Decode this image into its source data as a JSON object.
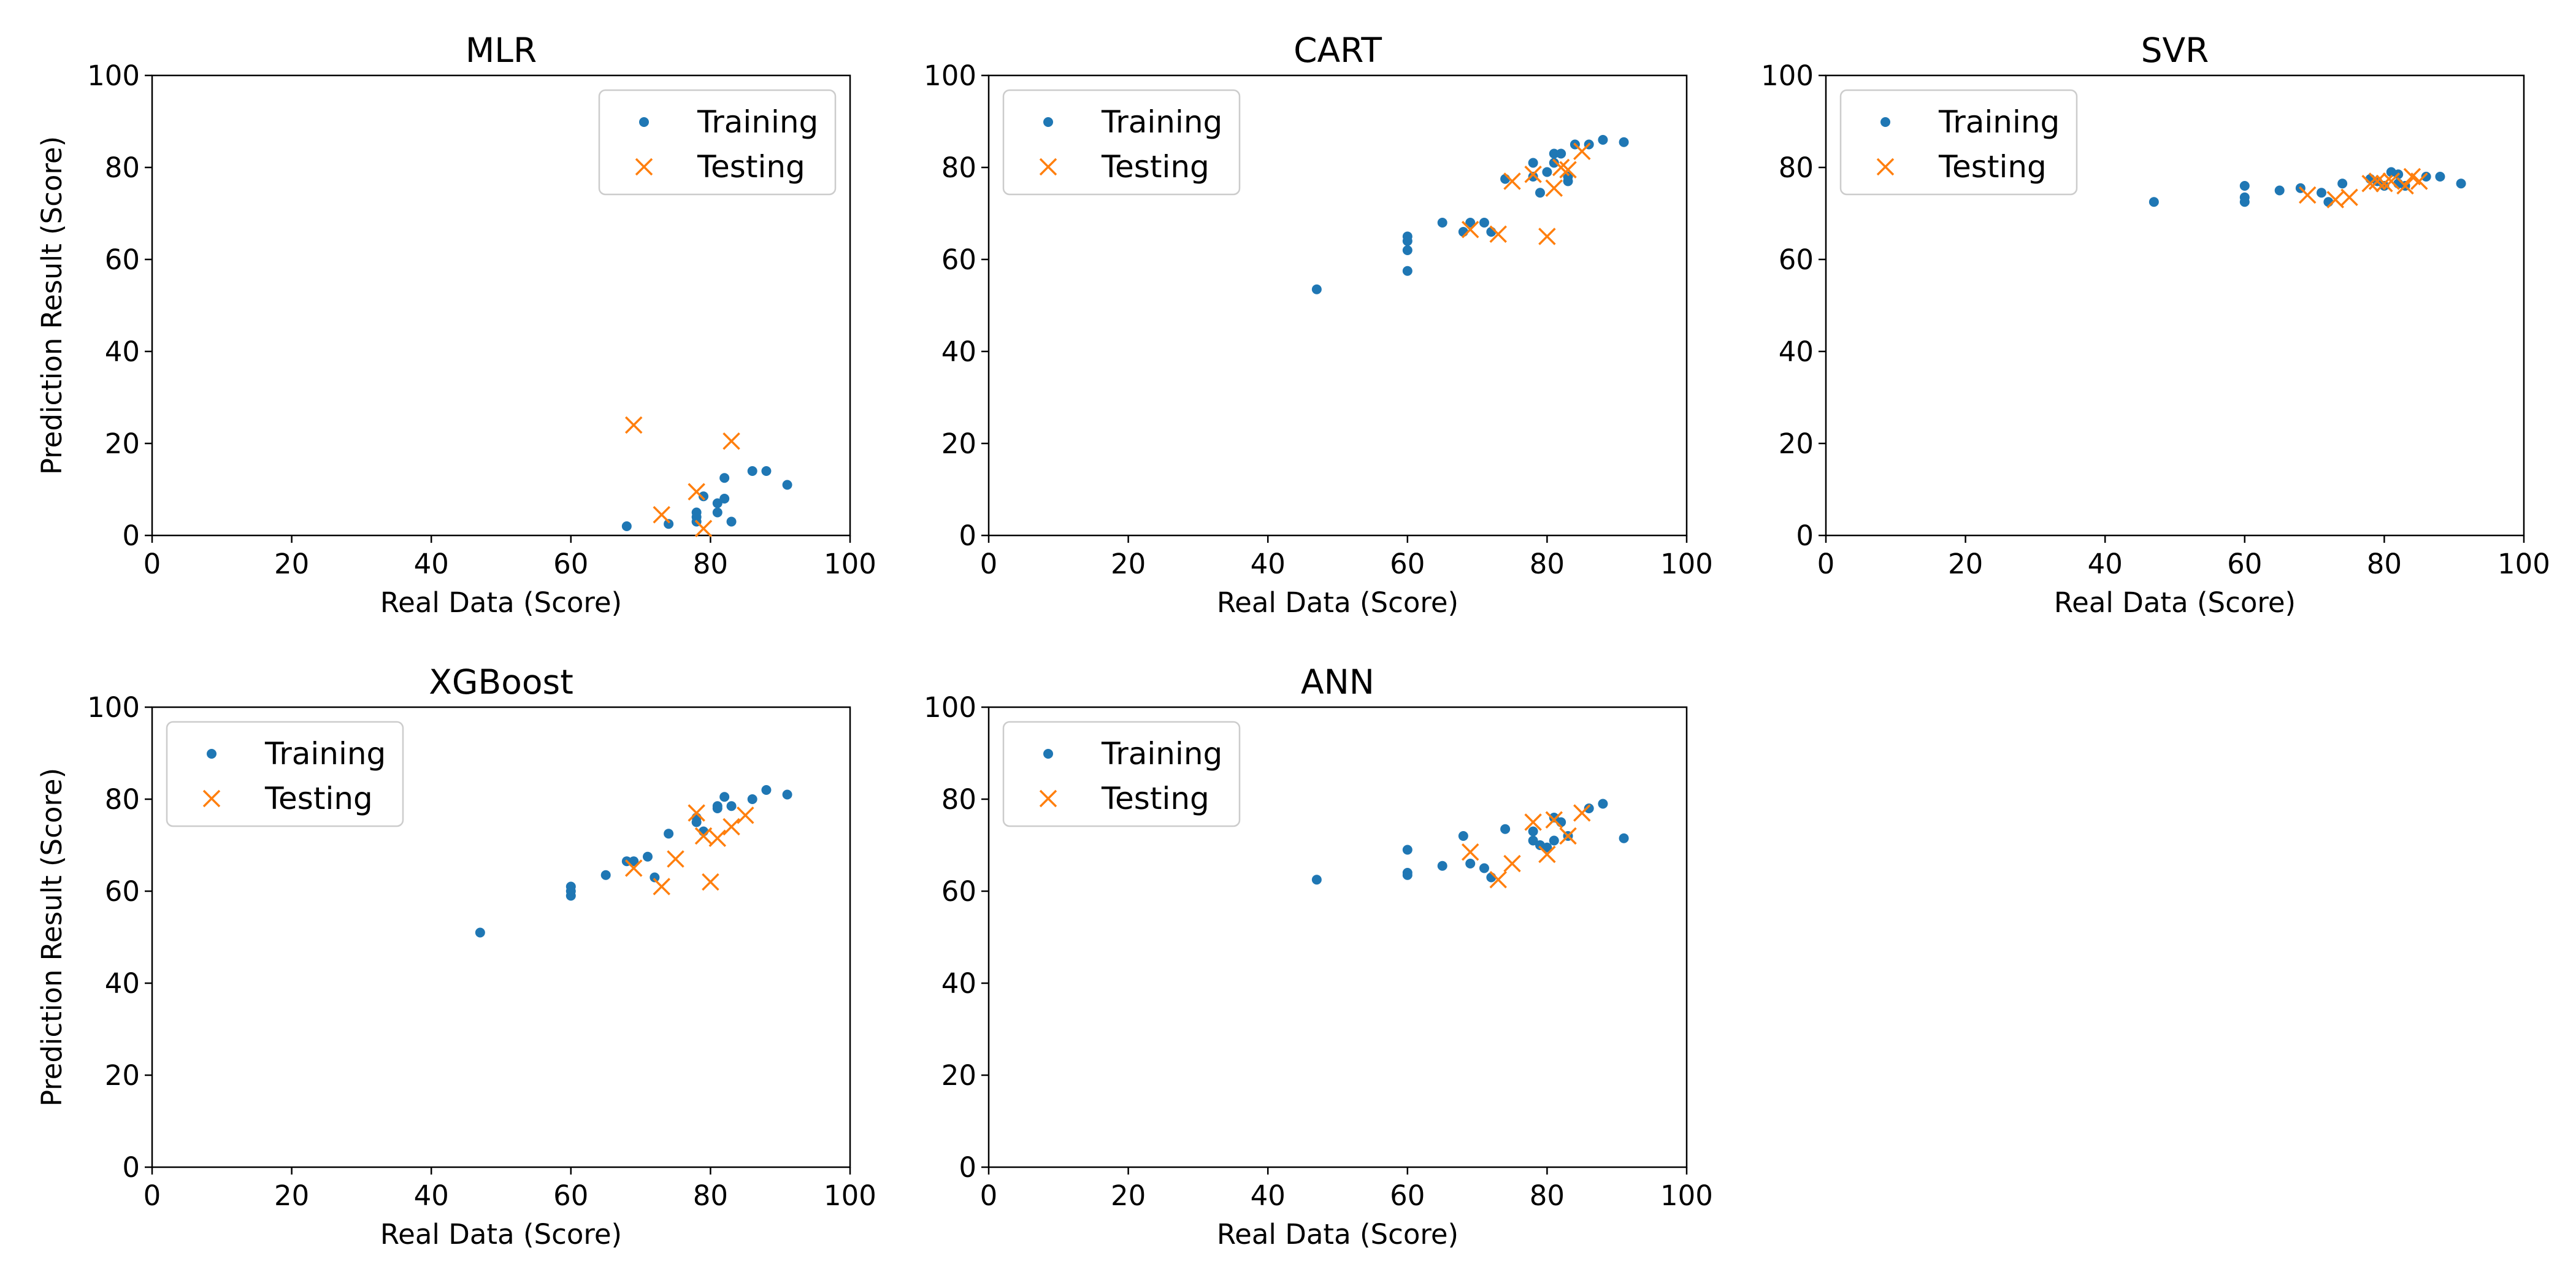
{
  "colors": {
    "training": "#1f77b4",
    "testing": "#ff7f0e"
  },
  "chart_data": [
    {
      "type": "scatter",
      "title": "MLR",
      "xlabel": "Real Data (Score)",
      "ylabel": "Prediction Result (Score)",
      "xlim": [
        0,
        100
      ],
      "ylim": [
        0,
        100
      ],
      "xticks": [
        "0",
        "20",
        "40",
        "60",
        "80",
        "100"
      ],
      "yticks": [
        "0",
        "20",
        "40",
        "60",
        "80",
        "100"
      ],
      "grid": false,
      "legend_position": "upper right",
      "series": [
        {
          "name": "Training",
          "marker": "dot",
          "points": [
            [
              68,
              2
            ],
            [
              74,
              2.5
            ],
            [
              78,
              3
            ],
            [
              78,
              4
            ],
            [
              78,
              5
            ],
            [
              79,
              8.5
            ],
            [
              81,
              5
            ],
            [
              81,
              7
            ],
            [
              82,
              8
            ],
            [
              82,
              12.5
            ],
            [
              83,
              3
            ],
            [
              86,
              14
            ],
            [
              88,
              14
            ],
            [
              91,
              11
            ]
          ]
        },
        {
          "name": "Testing",
          "marker": "x",
          "points": [
            [
              69,
              24
            ],
            [
              73,
              4.5
            ],
            [
              78,
              9.5
            ],
            [
              79,
              1.5
            ],
            [
              83,
              20.5
            ]
          ]
        }
      ]
    },
    {
      "type": "scatter",
      "title": "CART",
      "xlabel": "Real Data (Score)",
      "ylabel": "",
      "xlim": [
        0,
        100
      ],
      "ylim": [
        0,
        100
      ],
      "xticks": [
        "0",
        "20",
        "40",
        "60",
        "80",
        "100"
      ],
      "yticks": [
        "0",
        "20",
        "40",
        "60",
        "80",
        "100"
      ],
      "grid": false,
      "legend_position": "upper left",
      "series": [
        {
          "name": "Training",
          "marker": "dot",
          "points": [
            [
              47,
              53.5
            ],
            [
              60,
              57.5
            ],
            [
              60,
              62
            ],
            [
              60,
              64
            ],
            [
              60,
              65
            ],
            [
              65,
              68
            ],
            [
              68,
              66
            ],
            [
              69,
              68
            ],
            [
              71,
              68
            ],
            [
              72,
              66
            ],
            [
              74,
              77.5
            ],
            [
              78,
              78
            ],
            [
              78,
              81
            ],
            [
              79,
              74.5
            ],
            [
              80,
              79
            ],
            [
              81,
              81
            ],
            [
              81,
              83
            ],
            [
              82,
              83
            ],
            [
              83,
              78
            ],
            [
              83,
              77
            ],
            [
              84,
              85
            ],
            [
              86,
              85
            ],
            [
              88,
              86
            ],
            [
              91,
              85.5
            ]
          ]
        },
        {
          "name": "Testing",
          "marker": "x",
          "points": [
            [
              69,
              66.5
            ],
            [
              73,
              65.5
            ],
            [
              75,
              77
            ],
            [
              78,
              78.5
            ],
            [
              80,
              65
            ],
            [
              81,
              75.5
            ],
            [
              82,
              80
            ],
            [
              83,
              79.5
            ],
            [
              85,
              83.5
            ]
          ]
        }
      ]
    },
    {
      "type": "scatter",
      "title": "SVR",
      "xlabel": "Real Data (Score)",
      "ylabel": "",
      "xlim": [
        0,
        100
      ],
      "ylim": [
        0,
        100
      ],
      "xticks": [
        "0",
        "20",
        "40",
        "60",
        "80",
        "100"
      ],
      "yticks": [
        "0",
        "20",
        "40",
        "60",
        "80",
        "100"
      ],
      "grid": false,
      "legend_position": "upper left",
      "series": [
        {
          "name": "Training",
          "marker": "dot",
          "points": [
            [
              47,
              72.5
            ],
            [
              60,
              72.5
            ],
            [
              60,
              73.5
            ],
            [
              60,
              76
            ],
            [
              65,
              75
            ],
            [
              68,
              75.5
            ],
            [
              71,
              74.5
            ],
            [
              72,
              72.5
            ],
            [
              74,
              76.5
            ],
            [
              78,
              77.5
            ],
            [
              79,
              77
            ],
            [
              80,
              76
            ],
            [
              81,
              79
            ],
            [
              82,
              78.5
            ],
            [
              82,
              76.5
            ],
            [
              83,
              76
            ],
            [
              86,
              78
            ],
            [
              88,
              78
            ],
            [
              91,
              76.5
            ]
          ]
        },
        {
          "name": "Testing",
          "marker": "x",
          "points": [
            [
              69,
              74
            ],
            [
              73,
              73
            ],
            [
              75,
              73.5
            ],
            [
              78,
              76.5
            ],
            [
              79,
              77
            ],
            [
              80,
              76.5
            ],
            [
              81,
              77
            ],
            [
              83,
              76
            ],
            [
              84,
              78
            ],
            [
              85,
              77
            ]
          ]
        }
      ]
    },
    {
      "type": "scatter",
      "title": "XGBoost",
      "xlabel": "Real Data (Score)",
      "ylabel": "Prediction Result (Score)",
      "xlim": [
        0,
        100
      ],
      "ylim": [
        0,
        100
      ],
      "xticks": [
        "0",
        "20",
        "40",
        "60",
        "80",
        "100"
      ],
      "yticks": [
        "0",
        "20",
        "40",
        "60",
        "80",
        "100"
      ],
      "grid": false,
      "legend_position": "upper left",
      "series": [
        {
          "name": "Training",
          "marker": "dot",
          "points": [
            [
              47,
              51
            ],
            [
              60,
              59
            ],
            [
              60,
              60
            ],
            [
              60,
              61
            ],
            [
              65,
              63.5
            ],
            [
              68,
              66.5
            ],
            [
              69,
              66.5
            ],
            [
              71,
              67.5
            ],
            [
              72,
              63
            ],
            [
              74,
              72.5
            ],
            [
              78,
              76
            ],
            [
              78,
              75
            ],
            [
              79,
              73
            ],
            [
              81,
              78
            ],
            [
              81,
              78.5
            ],
            [
              82,
              80.5
            ],
            [
              83,
              78.5
            ],
            [
              86,
              80
            ],
            [
              88,
              82
            ],
            [
              91,
              81
            ]
          ]
        },
        {
          "name": "Testing",
          "marker": "x",
          "points": [
            [
              69,
              65
            ],
            [
              73,
              61
            ],
            [
              75,
              67
            ],
            [
              78,
              77
            ],
            [
              79,
              72
            ],
            [
              80,
              62
            ],
            [
              81,
              71.5
            ],
            [
              83,
              74
            ],
            [
              85,
              76.5
            ]
          ]
        }
      ]
    },
    {
      "type": "scatter",
      "title": "ANN",
      "xlabel": "Real Data (Score)",
      "ylabel": "",
      "xlim": [
        0,
        100
      ],
      "ylim": [
        0,
        100
      ],
      "xticks": [
        "0",
        "20",
        "40",
        "60",
        "80",
        "100"
      ],
      "yticks": [
        "0",
        "20",
        "40",
        "60",
        "80",
        "100"
      ],
      "grid": false,
      "legend_position": "upper left",
      "series": [
        {
          "name": "Training",
          "marker": "dot",
          "points": [
            [
              47,
              62.5
            ],
            [
              60,
              63.5
            ],
            [
              60,
              64
            ],
            [
              60,
              69
            ],
            [
              65,
              65.5
            ],
            [
              68,
              72
            ],
            [
              69,
              66
            ],
            [
              71,
              65
            ],
            [
              72,
              63
            ],
            [
              74,
              73.5
            ],
            [
              78,
              73
            ],
            [
              78,
              71
            ],
            [
              79,
              70
            ],
            [
              80,
              69.5
            ],
            [
              81,
              71
            ],
            [
              81,
              76
            ],
            [
              82,
              75
            ],
            [
              83,
              72
            ],
            [
              86,
              78
            ],
            [
              88,
              79
            ],
            [
              91,
              71.5
            ]
          ]
        },
        {
          "name": "Testing",
          "marker": "x",
          "points": [
            [
              69,
              68.5
            ],
            [
              73,
              62.5
            ],
            [
              75,
              66
            ],
            [
              78,
              75
            ],
            [
              80,
              68
            ],
            [
              81,
              75.5
            ],
            [
              83,
              72
            ],
            [
              85,
              77
            ]
          ]
        }
      ]
    }
  ]
}
